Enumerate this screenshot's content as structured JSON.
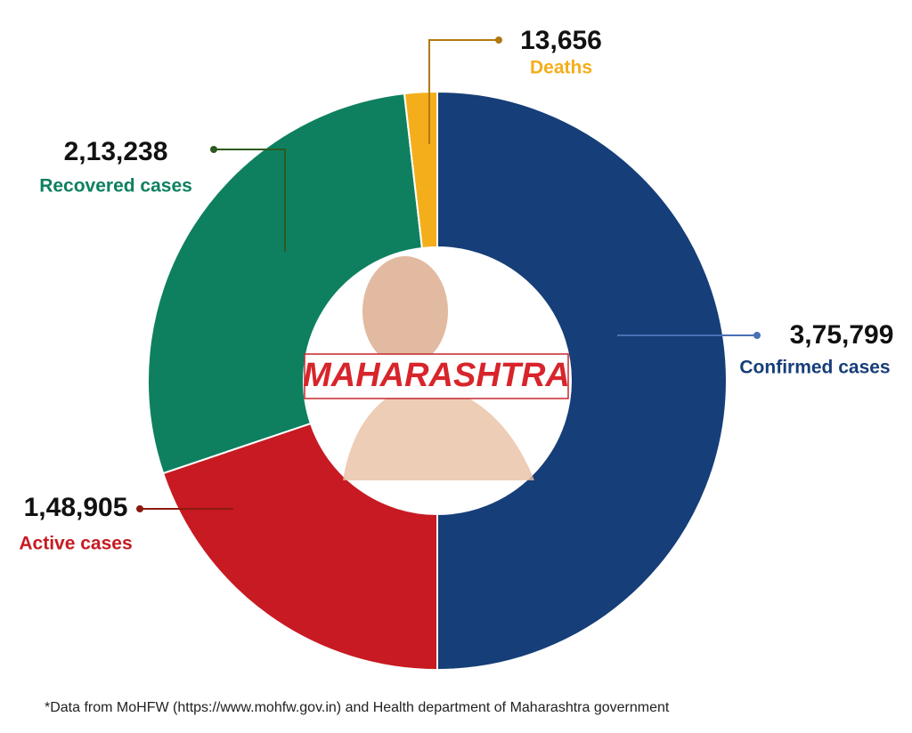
{
  "chart_data": {
    "type": "pie",
    "categories": [
      "Confirmed cases",
      "Active cases",
      "Recovered cases",
      "Deaths"
    ],
    "values": [
      375799,
      148905,
      213238,
      13656
    ],
    "value_labels": [
      "3,75,799",
      "1,48,905",
      "2,13,238",
      "13,656"
    ],
    "colors": [
      "#163e78",
      "#c71a22",
      "#0e8060",
      "#f4ae1b"
    ],
    "center_label": "MAHARASHTRA",
    "footnote": "*Data from MoHFW (https://www.mohfw.gov.in) and Health department of Maharashtra government"
  }
}
